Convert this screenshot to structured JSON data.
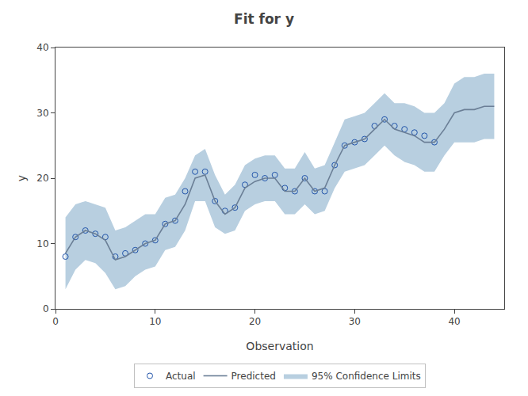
{
  "chart_data": {
    "type": "line",
    "title": "Fit for y",
    "xlabel": "Observation",
    "ylabel": "y",
    "xlim": [
      0,
      45
    ],
    "ylim": [
      0,
      40
    ],
    "xticks": [
      0,
      10,
      20,
      30,
      40
    ],
    "yticks": [
      0,
      10,
      20,
      30,
      40
    ],
    "grid": false,
    "legend": "bottom",
    "x": [
      1,
      2,
      3,
      4,
      5,
      6,
      7,
      8,
      9,
      10,
      11,
      12,
      13,
      14,
      15,
      16,
      17,
      18,
      19,
      20,
      21,
      22,
      23,
      24,
      25,
      26,
      27,
      28,
      29,
      30,
      31,
      32,
      33,
      34,
      35,
      36,
      37,
      38,
      39,
      40,
      41,
      42,
      43,
      44
    ],
    "series": [
      {
        "name": "Actual",
        "type": "scatter",
        "marker": "open_circle",
        "color": "#2255aa",
        "values": [
          8.0,
          11.0,
          12.0,
          11.5,
          11.0,
          8.0,
          8.5,
          9.0,
          10.0,
          10.5,
          13.0,
          13.5,
          18.0,
          21.0,
          21.0,
          16.5,
          15.0,
          15.5,
          19.0,
          20.5,
          20.0,
          20.5,
          18.5,
          18.0,
          20.0,
          18.0,
          18.0,
          22.0,
          25.0,
          25.5,
          26.0,
          28.0,
          29.0,
          28.0,
          27.5,
          27.0,
          26.5,
          25.5,
          null,
          null,
          null,
          null,
          null,
          null
        ]
      },
      {
        "name": "Predicted",
        "type": "line",
        "line_style": "solid",
        "color": "#6b7f96",
        "values": [
          8.5,
          11.0,
          12.0,
          11.5,
          10.5,
          7.5,
          8.0,
          9.0,
          10.0,
          10.5,
          13.0,
          13.5,
          16.0,
          20.0,
          20.5,
          16.5,
          14.5,
          15.5,
          18.5,
          19.5,
          20.0,
          20.0,
          18.0,
          18.0,
          20.0,
          18.0,
          18.5,
          22.0,
          25.0,
          25.5,
          26.0,
          27.5,
          29.0,
          27.5,
          27.0,
          26.5,
          25.5,
          25.5,
          27.5,
          30.0,
          30.5,
          30.5,
          31.0,
          31.0
        ]
      },
      {
        "name": "95% Confidence Limits",
        "type": "band",
        "color": "#b8cfe0",
        "lower": [
          3.0,
          6.0,
          7.5,
          7.0,
          5.5,
          3.0,
          3.5,
          5.0,
          6.0,
          6.5,
          9.0,
          9.5,
          12.0,
          16.5,
          16.5,
          12.5,
          11.5,
          12.0,
          15.0,
          16.0,
          16.5,
          16.5,
          14.5,
          14.5,
          16.0,
          14.5,
          15.0,
          18.5,
          21.0,
          21.5,
          22.0,
          23.5,
          25.0,
          23.5,
          22.5,
          22.0,
          21.0,
          21.0,
          23.5,
          25.5,
          25.5,
          25.5,
          26.0,
          26.0
        ],
        "upper": [
          14.0,
          16.0,
          16.5,
          16.0,
          15.5,
          12.0,
          12.5,
          13.5,
          14.5,
          14.5,
          17.0,
          17.5,
          20.0,
          23.5,
          24.5,
          20.5,
          17.5,
          19.0,
          22.0,
          23.0,
          23.5,
          23.5,
          21.5,
          21.5,
          24.0,
          21.5,
          22.0,
          25.5,
          29.0,
          29.5,
          30.0,
          31.5,
          33.0,
          31.5,
          31.5,
          31.0,
          30.0,
          30.0,
          31.5,
          34.5,
          35.5,
          35.5,
          36.0,
          36.0
        ]
      }
    ]
  }
}
